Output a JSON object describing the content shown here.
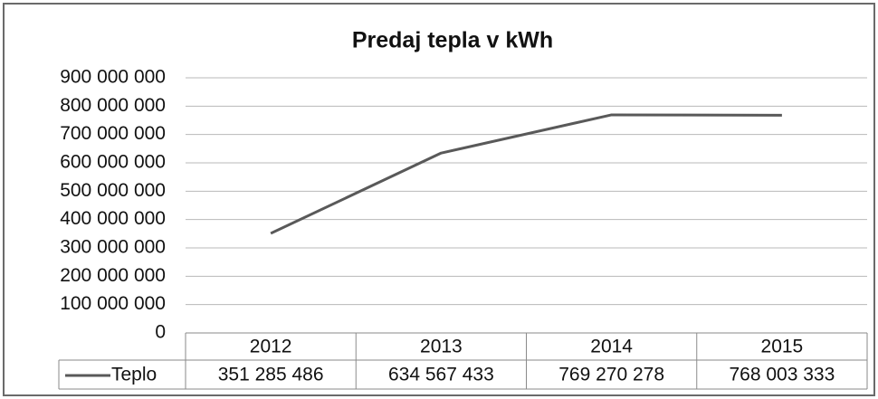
{
  "chart_data": {
    "type": "line",
    "title": "Predaj tepla v kWh",
    "categories": [
      "2012",
      "2013",
      "2014",
      "2015"
    ],
    "series": [
      {
        "name": "Teplo",
        "color": "#595959",
        "values": [
          351285486,
          634567433,
          769270278,
          768003333
        ],
        "value_labels": [
          "351 285 486",
          "634 567 433",
          "769 270 278",
          "768 003 333"
        ]
      }
    ],
    "ylim": [
      0,
      900000000
    ],
    "yticks": [
      0,
      {
        "value": 100000000,
        "label": "100 000 000"
      },
      {
        "value": 200000000,
        "label": "200 000 000"
      },
      {
        "value": 300000000,
        "label": "300 000 000"
      },
      {
        "value": 400000000,
        "label": "400 000 000"
      },
      {
        "value": 500000000,
        "label": "500 000 000"
      },
      {
        "value": 600000000,
        "label": "600 000 000"
      },
      {
        "value": 700000000,
        "label": "700 000 000"
      },
      {
        "value": 800000000,
        "label": "800 000 000"
      },
      {
        "value": 900000000,
        "label": "900 000 000"
      }
    ],
    "grid": true
  }
}
